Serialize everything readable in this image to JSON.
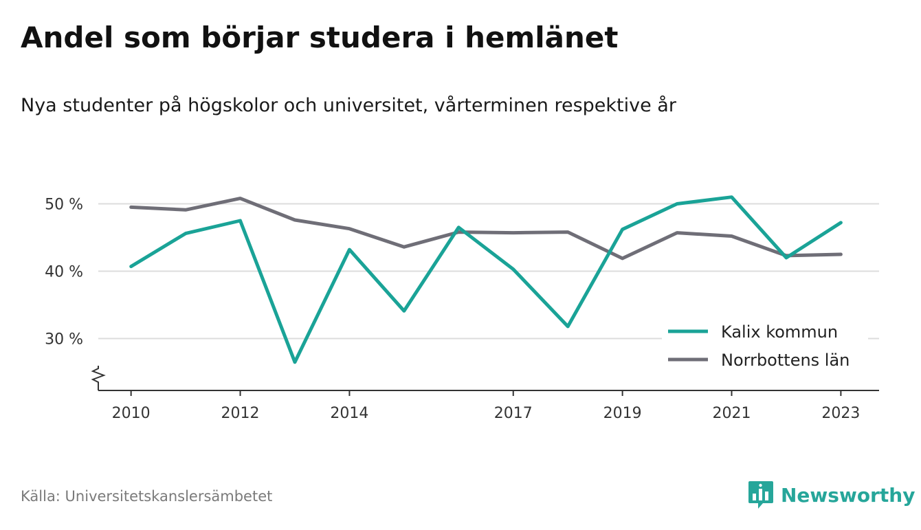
{
  "header": {
    "title": "Andel som börjar studera i hemlänet",
    "subtitle": "Nya studenter på högskolor och universitet, vårterminen respektive år"
  },
  "footer": {
    "source": "Källa: Universitetskanslersämbetet",
    "brand": "Newsworthy",
    "brand_icon": "bar-chart-speech-bubble-icon"
  },
  "chart_data": {
    "type": "line",
    "title": "Andel som börjar studera i hemlänet",
    "subtitle": "Nya studenter på högskolor och universitet, vårterminen respektive år",
    "xlabel": "",
    "ylabel": "",
    "x": [
      2010,
      2011,
      2012,
      2013,
      2014,
      2015,
      2016,
      2017,
      2018,
      2019,
      2020,
      2021,
      2022,
      2023
    ],
    "x_ticks": [
      2010,
      2012,
      2014,
      2017,
      2019,
      2021,
      2023
    ],
    "y_ticks": [
      30,
      40,
      50
    ],
    "y_tick_suffix": " %",
    "xlim": [
      2009.4,
      2023.7
    ],
    "ylim": [
      22.3,
      52.7
    ],
    "y_axis_break": true,
    "grid": "horizontal",
    "legend_position": "bottom-right",
    "series": [
      {
        "name": "Kalix kommun",
        "color": "#1aa397",
        "values": [
          40.7,
          45.6,
          47.5,
          26.5,
          43.2,
          34.1,
          46.5,
          40.3,
          31.8,
          46.2,
          50.0,
          51.0,
          42.0,
          47.2
        ]
      },
      {
        "name": "Norrbottens län",
        "color": "#6f6e77",
        "values": [
          49.5,
          49.1,
          50.8,
          47.6,
          46.3,
          43.6,
          45.8,
          45.7,
          45.8,
          41.9,
          45.7,
          45.2,
          42.3,
          42.5
        ]
      }
    ]
  }
}
